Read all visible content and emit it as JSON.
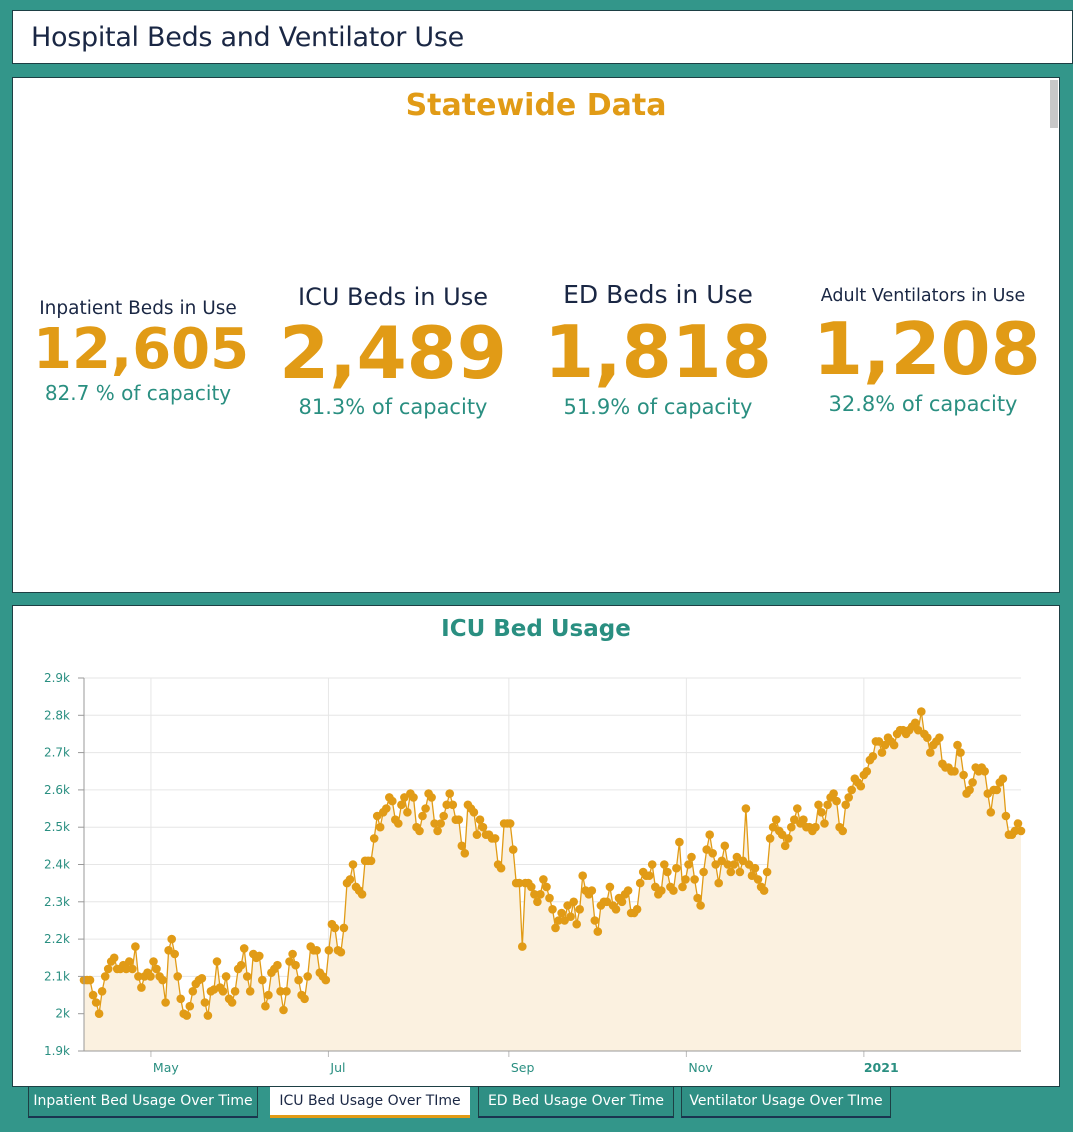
{
  "header": {
    "title": "Hospital Beds and Ventilator Use"
  },
  "stats": {
    "title": "Statewide Data",
    "items": [
      {
        "label": "Inpatient Beds in Use",
        "value": "12,605",
        "capacity": "82.7 % of capacity"
      },
      {
        "label": "ICU Beds in Use",
        "value": "2,489",
        "capacity": "81.3% of capacity"
      },
      {
        "label": "ED Beds in Use",
        "value": "1,818",
        "capacity": "51.9% of capacity"
      },
      {
        "label": "Adult Ventilators in Use",
        "value": "1,208",
        "capacity": "32.8% of capacity"
      }
    ]
  },
  "tabs": [
    {
      "label": "Inpatient Bed Usage Over Time",
      "active": false
    },
    {
      "label": "ICU Bed Usage Over TIme",
      "active": true
    },
    {
      "label": "ED Bed Usage Over Time",
      "active": false
    },
    {
      "label": "Ventilator Usage Over TIme",
      "active": false
    }
  ],
  "colors": {
    "accent": "#e19b16",
    "teal": "#2a8f81",
    "frame": "#33968a",
    "area": "#fbf1e0",
    "navy": "#1a2744"
  },
  "chart_data": {
    "type": "line",
    "title": "ICU Bed Usage",
    "xlabel": "",
    "ylabel": "",
    "ylim": [
      1900,
      2900
    ],
    "yticks": [
      1900,
      2000,
      2100,
      2200,
      2300,
      2400,
      2500,
      2600,
      2700,
      2800,
      2900
    ],
    "ytick_labels": [
      "1.9k",
      "2k",
      "2.1k",
      "2.2k",
      "2.3k",
      "2.4k",
      "2.5k",
      "2.6k",
      "2.7k",
      "2.8k",
      "2.9k"
    ],
    "x_start": "2020-04-08",
    "x_end": "2021-02-24",
    "xticks": [
      {
        "date": "2020-05-01",
        "label": "May",
        "bold": false
      },
      {
        "date": "2020-07-01",
        "label": "Jul",
        "bold": false
      },
      {
        "date": "2020-09-01",
        "label": "Sep",
        "bold": false
      },
      {
        "date": "2020-11-01",
        "label": "Nov",
        "bold": false
      },
      {
        "date": "2021-01-01",
        "label": "2021",
        "bold": true
      }
    ],
    "grid": true,
    "fill": "area",
    "step_days": 1,
    "series": [
      {
        "name": "ICU Beds in Use",
        "values": [
          2090,
          2090,
          2090,
          2050,
          2030,
          2000,
          2060,
          2100,
          2120,
          2140,
          2150,
          2120,
          2120,
          2130,
          2120,
          2140,
          2120,
          2180,
          2100,
          2070,
          2100,
          2110,
          2100,
          2140,
          2120,
          2100,
          2090,
          2030,
          2170,
          2200,
          2160,
          2100,
          2040,
          2000,
          1995,
          2020,
          2060,
          2080,
          2090,
          2095,
          2030,
          1995,
          2060,
          2065,
          2140,
          2070,
          2060,
          2100,
          2040,
          2030,
          2060,
          2120,
          2130,
          2175,
          2100,
          2060,
          2160,
          2150,
          2155,
          2090,
          2020,
          2050,
          2110,
          2120,
          2130,
          2060,
          2010,
          2060,
          2140,
          2160,
          2130,
          2090,
          2050,
          2040,
          2100,
          2180,
          2170,
          2170,
          2110,
          2100,
          2090,
          2170,
          2240,
          2230,
          2170,
          2165,
          2230,
          2350,
          2360,
          2400,
          2340,
          2330,
          2320,
          2410,
          2410,
          2410,
          2470,
          2530,
          2500,
          2540,
          2550,
          2580,
          2570,
          2520,
          2510,
          2560,
          2580,
          2540,
          2590,
          2580,
          2500,
          2490,
          2530,
          2550,
          2590,
          2580,
          2510,
          2490,
          2510,
          2530,
          2560,
          2590,
          2560,
          2520,
          2520,
          2450,
          2430,
          2560,
          2550,
          2540,
          2480,
          2520,
          2500,
          2480,
          2480,
          2470,
          2470,
          2400,
          2390,
          2510,
          2510,
          2510,
          2440,
          2350,
          2350,
          2180,
          2350,
          2350,
          2340,
          2320,
          2300,
          2320,
          2360,
          2340,
          2310,
          2280,
          2230,
          2250,
          2270,
          2250,
          2290,
          2260,
          2300,
          2240,
          2280,
          2370,
          2330,
          2320,
          2330,
          2250,
          2220,
          2290,
          2300,
          2300,
          2340,
          2290,
          2280,
          2310,
          2300,
          2320,
          2330,
          2270,
          2270,
          2280,
          2350,
          2380,
          2370,
          2370,
          2400,
          2340,
          2320,
          2330,
          2400,
          2380,
          2340,
          2330,
          2390,
          2460,
          2340,
          2360,
          2400,
          2420,
          2360,
          2310,
          2290,
          2380,
          2440,
          2480,
          2430,
          2400,
          2350,
          2410,
          2450,
          2400,
          2380,
          2400,
          2420,
          2380,
          2410,
          2550,
          2400,
          2370,
          2390,
          2360,
          2340,
          2330,
          2380,
          2470,
          2500,
          2520,
          2490,
          2480,
          2450,
          2470,
          2500,
          2520,
          2550,
          2510,
          2520,
          2500,
          2500,
          2490,
          2500,
          2560,
          2540,
          2510,
          2560,
          2580,
          2590,
          2570,
          2500,
          2490,
          2560,
          2580,
          2600,
          2630,
          2620,
          2610,
          2640,
          2650,
          2680,
          2690,
          2730,
          2730,
          2700,
          2720,
          2740,
          2730,
          2720,
          2750,
          2760,
          2760,
          2750,
          2760,
          2770,
          2780,
          2760,
          2810,
          2750,
          2740,
          2700,
          2720,
          2730,
          2740,
          2670,
          2660,
          2660,
          2650,
          2650,
          2720,
          2700,
          2640,
          2590,
          2600,
          2620,
          2660,
          2650,
          2660,
          2650,
          2590,
          2540,
          2600,
          2600,
          2620,
          2630,
          2530,
          2480,
          2480,
          2490,
          2510,
          2490
        ]
      }
    ]
  }
}
